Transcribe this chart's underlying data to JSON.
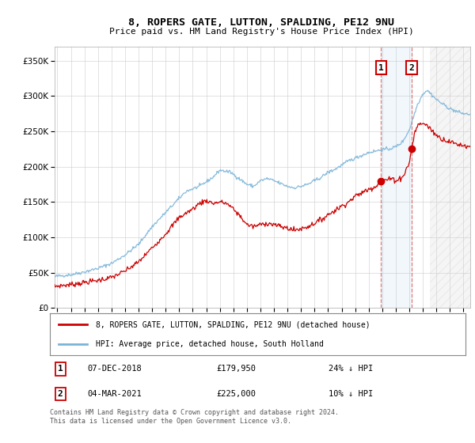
{
  "title": "8, ROPERS GATE, LUTTON, SPALDING, PE12 9NU",
  "subtitle": "Price paid vs. HM Land Registry's House Price Index (HPI)",
  "legend_line1": "8, ROPERS GATE, LUTTON, SPALDING, PE12 9NU (detached house)",
  "legend_line2": "HPI: Average price, detached house, South Holland",
  "transaction1_date": "07-DEC-2018",
  "transaction1_price": "£179,950",
  "transaction1_hpi": "24% ↓ HPI",
  "transaction2_date": "04-MAR-2021",
  "transaction2_price": "£225,000",
  "transaction2_hpi": "10% ↓ HPI",
  "footer": "Contains HM Land Registry data © Crown copyright and database right 2024.\nThis data is licensed under the Open Government Licence v3.0.",
  "hpi_color": "#7ab4d8",
  "price_color": "#cc0000",
  "marker1_x": 2018.92,
  "marker1_y": 179950,
  "marker2_x": 2021.17,
  "marker2_y": 225000,
  "ylim": [
    0,
    370000
  ],
  "xlim_start": 1994.8,
  "xlim_end": 2025.5,
  "yticks": [
    0,
    50000,
    100000,
    150000,
    200000,
    250000,
    300000,
    350000
  ],
  "xticks": [
    1995,
    1996,
    1997,
    1998,
    1999,
    2000,
    2001,
    2002,
    2003,
    2004,
    2005,
    2006,
    2007,
    2008,
    2009,
    2010,
    2011,
    2012,
    2013,
    2014,
    2015,
    2016,
    2017,
    2018,
    2019,
    2020,
    2021,
    2022,
    2023,
    2024,
    2025
  ]
}
